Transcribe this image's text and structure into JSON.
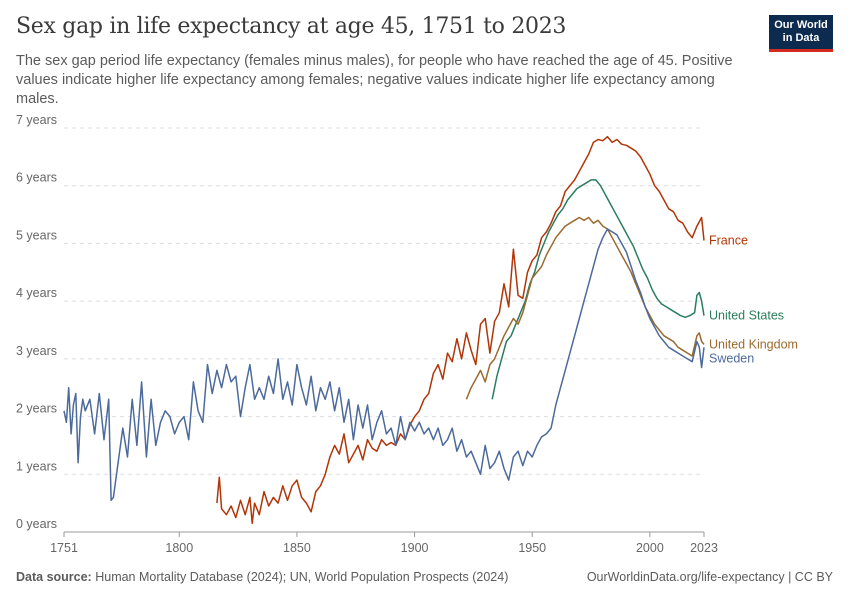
{
  "header": {
    "title": "Sex gap in life expectancy at age 45, 1751 to 2023",
    "subtitle": "The sex gap period life expectancy (females minus males), for people who have reached the age of 45. Positive values indicate higher life expectancy among females; negative values indicate higher life expectancy among males."
  },
  "logo": {
    "line1": "Our World",
    "line2": "in Data"
  },
  "footer": {
    "source_label": "Data source:",
    "source_text": "Human Mortality Database (2024); UN, World Population Prospects (2024)",
    "right_text": "OurWorldinData.org/life-expectancy | CC BY"
  },
  "chart_data": {
    "type": "line",
    "title": "Sex gap in life expectancy at age 45, 1751 to 2023",
    "xlabel": "",
    "ylabel": "",
    "xlim": [
      1751,
      2023
    ],
    "ylim": [
      0,
      7
    ],
    "x_ticks": [
      1751,
      1800,
      1850,
      1900,
      1950,
      2000,
      2023
    ],
    "y_ticks": [
      0,
      1,
      2,
      3,
      4,
      5,
      6,
      7
    ],
    "y_tick_labels": [
      "0 years",
      "1 years",
      "2 years",
      "3 years",
      "4 years",
      "5 years",
      "6 years",
      "7 years"
    ],
    "grid": "horizontal dashed",
    "legend": "end-of-line labels",
    "series": [
      {
        "name": "France",
        "color": "#b13507",
        "x": [
          1816,
          1817,
          1818,
          1820,
          1822,
          1824,
          1826,
          1828,
          1830,
          1831,
          1832,
          1834,
          1836,
          1838,
          1840,
          1842,
          1844,
          1846,
          1848,
          1850,
          1852,
          1854,
          1856,
          1858,
          1860,
          1862,
          1864,
          1866,
          1868,
          1870,
          1872,
          1874,
          1876,
          1878,
          1880,
          1882,
          1884,
          1886,
          1888,
          1890,
          1892,
          1894,
          1896,
          1898,
          1900,
          1902,
          1904,
          1906,
          1908,
          1910,
          1912,
          1914,
          1916,
          1918,
          1920,
          1922,
          1924,
          1926,
          1928,
          1930,
          1932,
          1934,
          1936,
          1938,
          1940,
          1942,
          1944,
          1946,
          1948,
          1950,
          1952,
          1954,
          1956,
          1958,
          1960,
          1962,
          1964,
          1966,
          1968,
          1970,
          1972,
          1974,
          1976,
          1978,
          1980,
          1982,
          1984,
          1986,
          1988,
          1990,
          1992,
          1994,
          1996,
          1998,
          2000,
          2002,
          2004,
          2006,
          2008,
          2010,
          2012,
          2014,
          2016,
          2018,
          2020,
          2022,
          2023
        ],
        "y": [
          0.5,
          0.95,
          0.4,
          0.3,
          0.45,
          0.25,
          0.55,
          0.3,
          0.6,
          0.15,
          0.5,
          0.3,
          0.7,
          0.45,
          0.6,
          0.5,
          0.8,
          0.55,
          0.8,
          0.9,
          0.6,
          0.5,
          0.35,
          0.7,
          0.8,
          1.0,
          1.3,
          1.5,
          1.35,
          1.7,
          1.2,
          1.35,
          1.5,
          1.25,
          1.6,
          1.45,
          1.4,
          1.6,
          1.5,
          1.55,
          1.5,
          1.7,
          1.6,
          1.85,
          2.0,
          2.1,
          2.3,
          2.4,
          2.75,
          2.9,
          2.65,
          3.1,
          2.95,
          3.35,
          3.0,
          3.45,
          3.15,
          2.9,
          3.6,
          3.7,
          3.1,
          3.65,
          3.8,
          4.3,
          3.9,
          4.9,
          4.1,
          4.05,
          4.5,
          4.7,
          4.8,
          5.1,
          5.2,
          5.35,
          5.55,
          5.65,
          5.9,
          6.0,
          6.1,
          6.25,
          6.4,
          6.55,
          6.75,
          6.8,
          6.78,
          6.85,
          6.75,
          6.8,
          6.72,
          6.7,
          6.65,
          6.6,
          6.5,
          6.35,
          6.2,
          6.0,
          5.9,
          5.75,
          5.6,
          5.55,
          5.4,
          5.35,
          5.2,
          5.1,
          5.3,
          5.45,
          5.05
        ]
      },
      {
        "name": "United States",
        "color": "#2a7d5e",
        "x": [
          1933,
          1935,
          1937,
          1939,
          1941,
          1943,
          1945,
          1947,
          1949,
          1951,
          1953,
          1955,
          1957,
          1959,
          1961,
          1963,
          1965,
          1967,
          1969,
          1971,
          1973,
          1975,
          1977,
          1979,
          1981,
          1983,
          1985,
          1987,
          1989,
          1991,
          1993,
          1995,
          1997,
          1999,
          2001,
          2003,
          2005,
          2007,
          2009,
          2011,
          2013,
          2015,
          2017,
          2019,
          2020,
          2021,
          2022,
          2023
        ],
        "y": [
          2.3,
          2.7,
          3.0,
          3.3,
          3.4,
          3.6,
          3.8,
          4.0,
          4.3,
          4.5,
          4.8,
          5.0,
          5.2,
          5.35,
          5.5,
          5.6,
          5.75,
          5.85,
          5.95,
          6.0,
          6.05,
          6.1,
          6.1,
          6.0,
          5.85,
          5.7,
          5.55,
          5.4,
          5.25,
          5.1,
          4.95,
          4.75,
          4.55,
          4.4,
          4.2,
          4.05,
          3.95,
          3.9,
          3.85,
          3.8,
          3.75,
          3.72,
          3.75,
          3.8,
          4.1,
          4.15,
          4.0,
          3.75
        ]
      },
      {
        "name": "United Kingdom",
        "color": "#9a6a2f",
        "x": [
          1922,
          1924,
          1926,
          1928,
          1930,
          1932,
          1934,
          1936,
          1938,
          1940,
          1942,
          1944,
          1946,
          1948,
          1950,
          1952,
          1954,
          1956,
          1958,
          1960,
          1962,
          1964,
          1966,
          1968,
          1970,
          1972,
          1974,
          1976,
          1978,
          1980,
          1982,
          1984,
          1986,
          1988,
          1990,
          1992,
          1994,
          1996,
          1998,
          2000,
          2002,
          2004,
          2006,
          2008,
          2010,
          2012,
          2014,
          2016,
          2018,
          2020,
          2021,
          2022,
          2023
        ],
        "y": [
          2.3,
          2.5,
          2.65,
          2.8,
          2.6,
          2.9,
          3.0,
          3.2,
          3.4,
          3.55,
          3.7,
          3.6,
          3.8,
          4.1,
          4.4,
          4.5,
          4.6,
          4.8,
          4.95,
          5.1,
          5.2,
          5.3,
          5.35,
          5.4,
          5.45,
          5.4,
          5.45,
          5.35,
          5.4,
          5.3,
          5.25,
          5.1,
          4.95,
          4.8,
          4.65,
          4.5,
          4.3,
          4.1,
          3.9,
          3.75,
          3.6,
          3.5,
          3.4,
          3.35,
          3.3,
          3.2,
          3.15,
          3.1,
          3.05,
          3.4,
          3.45,
          3.3,
          3.25
        ]
      },
      {
        "name": "Sweden",
        "color": "#4c6a9c",
        "x": [
          1751,
          1752,
          1753,
          1754,
          1755,
          1756,
          1757,
          1758,
          1759,
          1760,
          1762,
          1764,
          1766,
          1768,
          1770,
          1771,
          1772,
          1774,
          1776,
          1778,
          1780,
          1782,
          1784,
          1786,
          1788,
          1790,
          1792,
          1794,
          1796,
          1798,
          1800,
          1802,
          1804,
          1806,
          1808,
          1810,
          1812,
          1814,
          1816,
          1818,
          1820,
          1822,
          1824,
          1826,
          1828,
          1830,
          1832,
          1834,
          1836,
          1838,
          1840,
          1842,
          1844,
          1846,
          1848,
          1850,
          1852,
          1854,
          1856,
          1858,
          1860,
          1862,
          1864,
          1866,
          1868,
          1870,
          1872,
          1874,
          1876,
          1878,
          1880,
          1882,
          1884,
          1886,
          1888,
          1890,
          1892,
          1894,
          1896,
          1898,
          1900,
          1902,
          1904,
          1906,
          1908,
          1910,
          1912,
          1914,
          1916,
          1918,
          1920,
          1922,
          1924,
          1926,
          1928,
          1930,
          1932,
          1934,
          1936,
          1938,
          1940,
          1942,
          1944,
          1946,
          1948,
          1950,
          1952,
          1954,
          1956,
          1958,
          1960,
          1962,
          1964,
          1966,
          1968,
          1970,
          1972,
          1974,
          1976,
          1978,
          1980,
          1982,
          1984,
          1986,
          1988,
          1990,
          1992,
          1994,
          1996,
          1998,
          2000,
          2002,
          2004,
          2006,
          2008,
          2010,
          2012,
          2014,
          2016,
          2018,
          2020,
          2021,
          2022,
          2023
        ],
        "y": [
          2.1,
          1.9,
          2.5,
          1.7,
          2.2,
          2.4,
          1.2,
          2.0,
          2.3,
          2.1,
          2.3,
          1.7,
          2.4,
          1.6,
          2.3,
          0.55,
          0.6,
          1.2,
          1.8,
          1.3,
          2.3,
          1.5,
          2.6,
          1.3,
          2.3,
          1.5,
          1.9,
          2.1,
          2.0,
          1.7,
          1.9,
          2.0,
          1.6,
          2.6,
          2.1,
          1.9,
          2.9,
          2.4,
          2.8,
          2.5,
          2.9,
          2.6,
          2.7,
          2.0,
          2.5,
          2.9,
          2.3,
          2.5,
          2.3,
          2.7,
          2.4,
          3.0,
          2.3,
          2.6,
          2.2,
          2.9,
          2.5,
          2.2,
          2.7,
          2.1,
          2.5,
          2.3,
          2.6,
          2.1,
          2.5,
          1.9,
          2.3,
          1.6,
          2.2,
          1.8,
          2.2,
          1.6,
          1.9,
          2.1,
          1.7,
          1.8,
          1.5,
          2.0,
          1.6,
          1.9,
          1.75,
          1.9,
          1.7,
          1.8,
          1.6,
          1.8,
          1.5,
          1.6,
          1.8,
          1.4,
          1.6,
          1.3,
          1.4,
          1.2,
          1.0,
          1.5,
          1.1,
          1.2,
          1.4,
          1.1,
          0.9,
          1.3,
          1.4,
          1.15,
          1.4,
          1.3,
          1.5,
          1.65,
          1.7,
          1.8,
          2.2,
          2.5,
          2.8,
          3.1,
          3.4,
          3.7,
          4.0,
          4.3,
          4.6,
          4.9,
          5.1,
          5.25,
          5.2,
          5.15,
          5.0,
          4.85,
          4.6,
          4.35,
          4.15,
          3.9,
          3.7,
          3.55,
          3.4,
          3.3,
          3.2,
          3.15,
          3.1,
          3.05,
          3.0,
          2.95,
          3.3,
          3.2,
          2.85,
          3.2
        ]
      }
    ]
  }
}
